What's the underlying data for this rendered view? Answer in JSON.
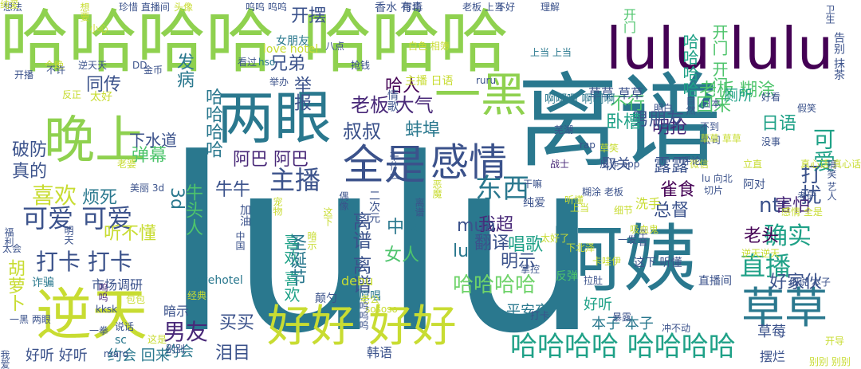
{
  "title": "word cloud",
  "palette": {
    "yellow": "#c8dc32",
    "lime": "#8fd14f",
    "green": "#4ec46c",
    "mint": "#6fd36a",
    "teal": "#1fa187",
    "blue": "#2a788e",
    "indigo": "#3b528b",
    "purple": "#482878",
    "dark": "#440154"
  },
  "words": [
    {
      "text": "lulu",
      "color": "#2a788e"
    },
    {
      "text": "离谱",
      "color": "#2a788e"
    },
    {
      "text": "哈哈哈哈",
      "color": "#8fd14f"
    },
    {
      "text": "哈哈哈",
      "color": "#8fd14f"
    },
    {
      "text": "lulu lulu",
      "color": "#440154"
    },
    {
      "text": "阿姨",
      "color": "#2a788e"
    },
    {
      "text": "两眼",
      "color": "#2a788e"
    },
    {
      "text": "一黑",
      "color": "#8fd14f"
    },
    {
      "text": "晚上",
      "color": "#8fd14f"
    },
    {
      "text": "全是",
      "color": "#3b528b"
    },
    {
      "text": "感情",
      "color": "#3b528b"
    },
    {
      "text": "逆天",
      "color": "#c8dc32"
    },
    {
      "text": "好好 好好",
      "color": "#c8dc32"
    },
    {
      "text": "草草",
      "color": "#2a788e"
    },
    {
      "text": "哈哈哈哈 哈哈哈哈",
      "color": "#1fa187"
    },
    {
      "text": "主播",
      "color": "#3b528b"
    },
    {
      "text": "喜欢",
      "color": "#c8dc32"
    },
    {
      "text": "可爱 可爱",
      "color": "#3b528b"
    },
    {
      "text": "打卡 打卡",
      "color": "#3b528b"
    },
    {
      "text": "东西",
      "color": "#2a788e"
    },
    {
      "text": "直播",
      "color": "#1fa187"
    },
    {
      "text": "确实",
      "color": "#1fa187"
    },
    {
      "text": "哈哈哈哈",
      "color": "#6fd36a"
    },
    {
      "text": "男友",
      "color": "#482878"
    },
    {
      "text": "开摆",
      "color": "#3b528b"
    },
    {
      "text": "不行",
      "color": "#4ec46c"
    },
    {
      "text": "明抢",
      "color": "#482878"
    },
    {
      "text": "回来",
      "color": "#4ec46c"
    },
    {
      "text": "日语",
      "color": "#1fa187"
    },
    {
      "text": "可爱",
      "color": "#1fa187"
    },
    {
      "text": "男朋友",
      "color": "#3b528b"
    },
    {
      "text": "老板 糊涂",
      "color": "#4ec46c"
    },
    {
      "text": "卧槽",
      "color": "#1fa187"
    },
    {
      "text": "叔叔",
      "color": "#3b528b"
    },
    {
      "text": "蚌埠",
      "color": "#2a788e"
    },
    {
      "text": "老板 大气",
      "color": "#482878"
    },
    {
      "text": "雀食",
      "color": "#440154"
    },
    {
      "text": "露露",
      "color": "#3b528b"
    },
    {
      "text": "总督",
      "color": "#3b528b"
    },
    {
      "text": "ntr",
      "color": "#3b528b"
    },
    {
      "text": "打扰",
      "color": "#3b528b"
    },
    {
      "text": "害怕",
      "color": "#482878"
    },
    {
      "text": "好家伙",
      "color": "#3b528b"
    },
    {
      "text": "老头",
      "color": "#440154"
    },
    {
      "text": "阿巴 阿巴",
      "color": "#482878"
    },
    {
      "text": "烦死",
      "color": "#2a788e"
    },
    {
      "text": "听不懂",
      "color": "#c8dc32"
    },
    {
      "text": "真的",
      "color": "#3b528b"
    },
    {
      "text": "破防",
      "color": "#3b528b"
    },
    {
      "text": "弹幕",
      "color": "#4ec46c"
    },
    {
      "text": "下水道",
      "color": "#3b528b"
    },
    {
      "text": "同传",
      "color": "#3b528b"
    },
    {
      "text": "兄弟",
      "color": "#3b528b"
    },
    {
      "text": "哈人",
      "color": "#440154"
    },
    {
      "text": "唱歌",
      "color": "#1fa187"
    },
    {
      "text": "反弹",
      "color": "#4ec46c"
    },
    {
      "text": "发病",
      "color": "#2a788e"
    },
    {
      "text": "举报",
      "color": "#3b528b"
    },
    {
      "text": "中文",
      "color": "#2a788e"
    },
    {
      "text": "女人",
      "color": "#4ec46c"
    },
    {
      "text": "翻译",
      "color": "#3b528b"
    },
    {
      "text": "我超",
      "color": "#482878"
    },
    {
      "text": "明示",
      "color": "#3b528b"
    },
    {
      "text": "mua",
      "color": "#3b528b"
    },
    {
      "text": "lu",
      "color": "#2a788e"
    },
    {
      "text": "买买",
      "color": "#3b528b"
    },
    {
      "text": "泪目",
      "color": "#3b528b"
    },
    {
      "text": "暗示",
      "color": "#3b528b"
    },
    {
      "text": "市场调研",
      "color": "#3b528b"
    },
    {
      "text": "好听 好听",
      "color": "#3b528b"
    },
    {
      "text": "约会 回来",
      "color": "#2a788e"
    },
    {
      "text": "约会",
      "color": "#2a788e"
    },
    {
      "text": "胡萝卜",
      "color": "#c8dc32"
    },
    {
      "text": "本子 本子",
      "color": "#2a788e"
    },
    {
      "text": "草莓",
      "color": "#3b528b"
    },
    {
      "text": "摆烂",
      "color": "#3b528b"
    },
    {
      "text": "平安夜",
      "color": "#2a788e"
    },
    {
      "text": "好听",
      "color": "#1fa187"
    },
    {
      "text": "喜欢 喜欢",
      "color": "#1fa187"
    },
    {
      "text": "离谱 离谱",
      "color": "#3b528b"
    },
    {
      "text": "圣诞节",
      "color": "#2a788e"
    },
    {
      "text": "牛头人",
      "color": "#4ec46c"
    },
    {
      "text": "二次元",
      "color": "#3b528b"
    },
    {
      "text": "牛牛",
      "color": "#3b528b"
    },
    {
      "text": "3d",
      "color": "#2a788e"
    },
    {
      "text": "哈哈哈哈",
      "color": "#2a788e"
    },
    {
      "text": "哈哈哈哈",
      "color": "#1fa187"
    },
    {
      "text": "开门 开门",
      "color": "#4ec46c"
    },
    {
      "text": "开门",
      "color": "#4ec46c"
    },
    {
      "text": "草草 草草",
      "color": "#3b528b"
    },
    {
      "text": "啊啊啊 啊啊啊",
      "color": "#2a788e"
    },
    {
      "text": "厕所",
      "color": "#1fa187"
    },
    {
      "text": "取关",
      "color": "#3b528b"
    },
    {
      "text": "洗手",
      "color": "#c8dc32"
    },
    {
      "text": "直播间",
      "color": "#3b528b"
    },
    {
      "text": "这下 听懂",
      "color": "#3b528b"
    },
    {
      "text": "debu",
      "color": "#c8dc32"
    },
    {
      "text": "原唱",
      "color": "#2a788e"
    },
    {
      "text": "颠勺",
      "color": "#3b528b"
    },
    {
      "text": "韩语",
      "color": "#3b528b"
    },
    {
      "text": "诈骗",
      "color": "#2a788e"
    },
    {
      "text": "lovehotel",
      "color": "#2a788e"
    },
    {
      "text": "一黑 两眼",
      "color": "#3b528b"
    },
    {
      "text": "开播",
      "color": "#3b528b"
    },
    {
      "text": "想法",
      "color": "#3b528b"
    },
    {
      "text": "珍惜 直播间",
      "color": "#3b528b"
    },
    {
      "text": "头像",
      "color": "#c8dc32"
    },
    {
      "text": "呜呜 呜呜",
      "color": "#3b528b"
    },
    {
      "text": "香水 有毒",
      "color": "#3b528b"
    },
    {
      "text": "市场",
      "color": "#3b528b"
    },
    {
      "text": "老板 上当",
      "color": "#3b528b"
    },
    {
      "text": "不好",
      "color": "#3b528b"
    },
    {
      "text": "理解",
      "color": "#3b528b"
    },
    {
      "text": "今晚",
      "color": "#c8dc32"
    },
    {
      "text": "逆天天",
      "color": "#3b528b"
    },
    {
      "text": "DD",
      "color": "#3b528b"
    },
    {
      "text": "白色 相簿",
      "color": "#c8dc32"
    },
    {
      "text": "上当 上当",
      "color": "#2a788e"
    },
    {
      "text": "不许",
      "color": "#3b528b"
    },
    {
      "text": "金币",
      "color": "#3b528b"
    },
    {
      "text": "看过",
      "color": "#3b528b"
    },
    {
      "text": "抢钱",
      "color": "#3b528b"
    },
    {
      "text": "八点",
      "color": "#3b528b"
    },
    {
      "text": "love hotel",
      "color": "#c8dc32"
    },
    {
      "text": "女朋友",
      "color": "#2a788e"
    },
    {
      "text": "hso",
      "color": "#2a788e"
    },
    {
      "text": "ruru",
      "color": "#3b528b"
    },
    {
      "text": "主播 日语",
      "color": "#c8dc32"
    },
    {
      "text": "反正",
      "color": "#c8dc32"
    },
    {
      "text": "太好",
      "color": "#c8dc32"
    },
    {
      "text": "举办",
      "color": "#3b528b"
    },
    {
      "text": "呜呜",
      "color": "#482878"
    },
    {
      "text": "maro",
      "color": "#3b528b"
    },
    {
      "text": "别别",
      "color": "#3b528b"
    },
    {
      "text": "情歌",
      "color": "#3b528b"
    },
    {
      "text": "明白",
      "color": "#3b528b"
    },
    {
      "text": "好看",
      "color": "#3b528b"
    },
    {
      "text": "日本",
      "color": "#3b528b"
    },
    {
      "text": "芜湖",
      "color": "#3b528b"
    },
    {
      "text": "不到",
      "color": "#3b528b"
    },
    {
      "text": "公司",
      "color": "#3b528b"
    },
    {
      "text": "没事",
      "color": "#3b528b"
    },
    {
      "text": "rap",
      "color": "#3b528b"
    },
    {
      "text": "草笑",
      "color": "#c8dc32"
    },
    {
      "text": "立直",
      "color": "#c8dc32"
    },
    {
      "text": "真心话 真心话",
      "color": "#c8dc32"
    },
    {
      "text": "微信",
      "color": "#c8dc32"
    },
    {
      "text": "lu 向北",
      "color": "#3b528b"
    },
    {
      "text": "切片",
      "color": "#3b528b"
    },
    {
      "text": "阿对",
      "color": "#3b528b"
    },
    {
      "text": "考研",
      "color": "#3b528b"
    },
    {
      "text": "感情 全是",
      "color": "#c8dc32"
    },
    {
      "text": "老婆",
      "color": "#c8dc32"
    },
    {
      "text": "美丽 3d",
      "color": "#3b528b"
    },
    {
      "text": "偶像",
      "color": "#3b528b"
    },
    {
      "text": "纯爱",
      "color": "#3b528b"
    },
    {
      "text": "战士",
      "color": "#482878"
    },
    {
      "text": "反诈 app",
      "color": "#3b528b"
    },
    {
      "text": "糊涂 老板",
      "color": "#3b528b"
    },
    {
      "text": "上当",
      "color": "#c8dc32"
    },
    {
      "text": "本音",
      "color": "#3b528b"
    },
    {
      "text": "一发",
      "color": "#3b528b"
    },
    {
      "text": "太好了",
      "color": "#c8dc32"
    },
    {
      "text": "下北泽",
      "color": "#c8dc32"
    },
    {
      "text": "卡哇伊",
      "color": "#c8dc32"
    },
    {
      "text": "逆天逆天",
      "color": "#c8dc32"
    },
    {
      "text": "细说 本子",
      "color": "#3b528b"
    },
    {
      "text": "老公",
      "color": "#c8dc32"
    },
    {
      "text": "sososo",
      "color": "#c8dc32"
    },
    {
      "text": "经典",
      "color": "#c8dc32"
    },
    {
      "text": "包包",
      "color": "#c8dc32"
    },
    {
      "text": "kksk",
      "color": "#3b528b"
    },
    {
      "text": "说话",
      "color": "#3b528b"
    },
    {
      "text": "一拳",
      "color": "#3b528b"
    },
    {
      "text": "sc",
      "color": "#2a788e"
    },
    {
      "text": "这是",
      "color": "#c8dc32"
    },
    {
      "text": "打卡",
      "color": "#3b528b"
    },
    {
      "text": "暴露",
      "color": "#3b528b"
    },
    {
      "text": "冲不动",
      "color": "#3b528b"
    },
    {
      "text": "开导",
      "color": "#c8dc32"
    },
    {
      "text": "别别 别别",
      "color": "#c8dc32"
    },
    {
      "text": "我爱",
      "color": "#3b528b"
    },
    {
      "text": "太会",
      "color": "#3b528b"
    },
    {
      "text": "福利",
      "color": "#3b528b"
    },
    {
      "text": "明天",
      "color": "#3b528b"
    },
    {
      "text": "想要",
      "color": "#c8dc32"
    },
    {
      "text": "小心",
      "color": "#c8dc32"
    },
    {
      "text": "呜呜呜",
      "color": "#3b528b"
    },
    {
      "text": "加油",
      "color": "#3b528b"
    },
    {
      "text": "卫生",
      "color": "#3b528b"
    },
    {
      "text": "告别 抹茶",
      "color": "#3b528b"
    },
    {
      "text": "搞笑 艺人",
      "color": "#3b528b"
    },
    {
      "text": "假笑",
      "color": "#3b528b"
    },
    {
      "text": "评论",
      "color": "#3b528b"
    },
    {
      "text": "掌控",
      "color": "#3b528b"
    },
    {
      "text": "拉肚",
      "color": "#3b528b"
    },
    {
      "text": "自然",
      "color": "#3b528b"
    },
    {
      "text": "草草 草草",
      "color": "#c8dc32"
    },
    {
      "text": "宠物",
      "color": "#c8dc32"
    },
    {
      "text": "吸血鬼",
      "color": "#c8dc32"
    },
    {
      "text": "这下",
      "color": "#c8dc32"
    },
    {
      "text": "暗示",
      "color": "#c8dc32"
    },
    {
      "text": "中国",
      "color": "#3b528b"
    },
    {
      "text": "干什么",
      "color": "#3b528b"
    },
    {
      "text": "离谱",
      "color": "#3b528b"
    },
    {
      "text": "恶魔",
      "color": "#c8dc32"
    },
    {
      "text": "听懂",
      "color": "#c8dc32"
    },
    {
      "text": "细节",
      "color": "#c8dc32"
    },
    {
      "text": "干嘛",
      "color": "#3b528b"
    },
    {
      "text": "纯爱",
      "color": "#c8dc32"
    }
  ]
}
